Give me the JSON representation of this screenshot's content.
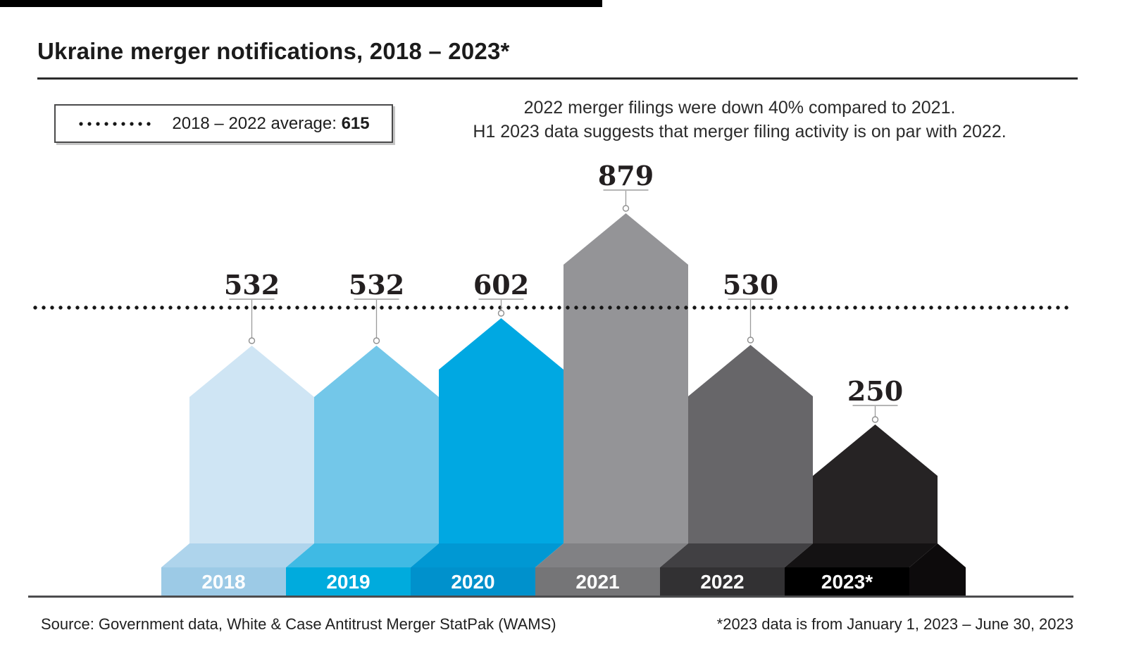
{
  "page": {
    "title": "Ukraine merger notifications, 2018 – 2023*"
  },
  "legend": {
    "label": "2018 – 2022 average:",
    "value": "615"
  },
  "annotation": {
    "line1": "2022 merger filings were down 40% compared to 2021.",
    "line2": "H1 2023 data suggests that merger filing activity is on par with 2022."
  },
  "footer": {
    "source": "Source: Government data, White & Case Antitrust Merger StatPak (WAMS)",
    "note": "*2023 data is from January 1, 2023 – June 30, 2023"
  },
  "chart_data": {
    "type": "bar",
    "title": "Ukraine merger notifications, 2018 – 2023*",
    "categories": [
      "2018",
      "2019",
      "2020",
      "2021",
      "2022",
      "2023*"
    ],
    "values": [
      532,
      532,
      602,
      879,
      530,
      250
    ],
    "average_label": "2018 – 2022 average",
    "average_value": 615,
    "average_line_style": "dotted",
    "ylim": [
      0,
      900
    ],
    "bar_shape": "pencil-pentagon-with-3d-base",
    "colors": {
      "column": [
        "#cfe5f4",
        "#73c7e9",
        "#00a8e2",
        "#949497",
        "#676669",
        "#262324"
      ],
      "platform_top": [
        "#aed4ec",
        "#3fbae4",
        "#0098d3",
        "#818184",
        "#414043",
        "#141213"
      ],
      "platform_front": [
        "#9ccae6",
        "#00abdd",
        "#0091cc",
        "#757577",
        "#323133",
        "#000000"
      ],
      "value_label": "#231f20",
      "year_label": "#ffffff",
      "average_dots": "#161616",
      "baseline": "#4c4c4e",
      "marker_stroke": "#8e8e8e",
      "label_underline": "#b5b5b5"
    }
  }
}
